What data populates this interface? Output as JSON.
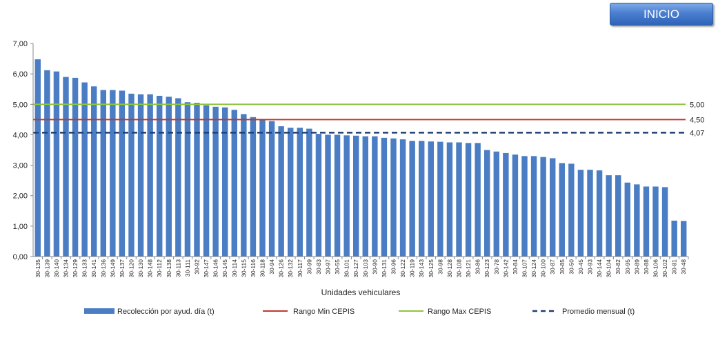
{
  "button": {
    "label": "INICIO"
  },
  "colors": {
    "bar": "#4a7dc4",
    "min": "#c0392b",
    "max": "#8fc43f",
    "avg": "#1f3f73"
  },
  "chart_data": {
    "type": "bar",
    "xlabel": "Unidades vehiculares",
    "ylabel": "",
    "ylim": [
      0,
      7
    ],
    "yticks": [
      "0,00",
      "1,00",
      "2,00",
      "3,00",
      "4,00",
      "5,00",
      "6,00",
      "7,00"
    ],
    "categories": [
      "30-135",
      "30-139",
      "30-140",
      "30-134",
      "30-129",
      "30-133",
      "30-141",
      "30-136",
      "30-149",
      "30-137",
      "30-120",
      "30-130",
      "30-148",
      "30-112",
      "30-138",
      "30-113",
      "30-111",
      "30-92",
      "30-147",
      "30-146",
      "30-145",
      "30-114",
      "30-115",
      "30-116",
      "30-118",
      "30-94",
      "30-126",
      "30-132",
      "30-117",
      "30-99",
      "30-83",
      "30-97",
      "30-55",
      "30-101",
      "30-127",
      "30-103",
      "30-90",
      "30-131",
      "30-96",
      "30-122",
      "30-119",
      "30-143",
      "30-125",
      "30-98",
      "30-128",
      "30-108",
      "30-121",
      "30-86",
      "30-123",
      "30-78",
      "30-142",
      "30-84",
      "30-107",
      "30-124",
      "30-100",
      "30-87",
      "30-85",
      "30-50",
      "30-45",
      "30-93",
      "30-144",
      "30-104",
      "30-82",
      "30-95",
      "30-89",
      "30-88",
      "30-106",
      "30-102",
      "30-81",
      "30-48"
    ],
    "series": [
      {
        "name": "Recolección por ayud. día (t)",
        "type": "bar",
        "values": [
          6.48,
          6.12,
          6.08,
          5.9,
          5.87,
          5.72,
          5.59,
          5.47,
          5.47,
          5.45,
          5.35,
          5.33,
          5.33,
          5.28,
          5.25,
          5.2,
          5.07,
          5.05,
          4.97,
          4.92,
          4.9,
          4.82,
          4.68,
          4.58,
          4.5,
          4.45,
          4.28,
          4.23,
          4.23,
          4.2,
          4.03,
          4.0,
          4.0,
          3.98,
          3.97,
          3.95,
          3.95,
          3.9,
          3.88,
          3.85,
          3.8,
          3.8,
          3.78,
          3.77,
          3.75,
          3.75,
          3.73,
          3.73,
          3.5,
          3.45,
          3.4,
          3.35,
          3.3,
          3.3,
          3.27,
          3.23,
          3.07,
          3.05,
          2.85,
          2.85,
          2.83,
          2.67,
          2.67,
          2.43,
          2.37,
          2.3,
          2.3,
          2.28,
          1.18,
          1.17
        ]
      },
      {
        "name": "Rango Min CEPIS",
        "type": "hline",
        "value": 4.5,
        "label": "4,50"
      },
      {
        "name": "Rango Max CEPIS",
        "type": "hline",
        "value": 5.0,
        "label": "5,00"
      },
      {
        "name": "Promedio mensual (t)",
        "type": "hline",
        "value": 4.07,
        "label": "4,07"
      }
    ],
    "legend_position": "bottom",
    "grid": false
  }
}
